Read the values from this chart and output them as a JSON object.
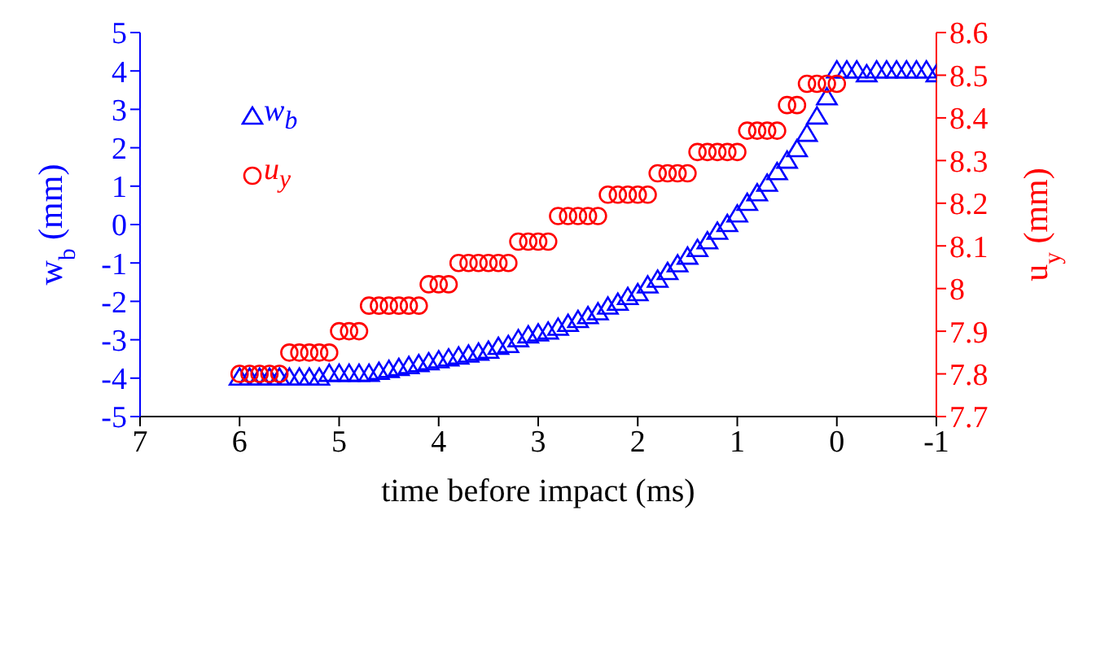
{
  "chart_data": {
    "type": "scatter",
    "xlabel": "time before impact (ms)",
    "ylabel": "w$_{b}$ (mm)",
    "y2label": "u$_{y}$ (mm)",
    "xlim": [
      7,
      -1
    ],
    "xticks": [
      7,
      6,
      5,
      4,
      3,
      2,
      1,
      0,
      -1
    ],
    "ylim": [
      -5,
      5
    ],
    "yticks": [
      -5,
      -4,
      -3,
      -2,
      -1,
      0,
      1,
      2,
      3,
      4,
      5
    ],
    "y2lim": [
      7.7,
      8.6
    ],
    "y2ticks": [
      7.7,
      7.8,
      7.9,
      8,
      8.1,
      8.2,
      8.3,
      8.4,
      8.5,
      8.6
    ],
    "grid": false,
    "legend": "top left",
    "series": [
      {
        "name": "w$_{b}$",
        "color": "#0000ff",
        "marker": "triangle",
        "x": [
          6.0,
          5.9,
          5.8,
          5.7,
          5.6,
          5.5,
          5.4,
          5.3,
          5.2,
          5.1,
          5.0,
          4.9,
          4.8,
          4.7,
          4.6,
          4.5,
          4.4,
          4.3,
          4.2,
          4.1,
          4.0,
          3.9,
          3.8,
          3.7,
          3.6,
          3.5,
          3.4,
          3.3,
          3.2,
          3.1,
          3.0,
          2.9,
          2.8,
          2.7,
          2.6,
          2.5,
          2.4,
          2.3,
          2.2,
          2.1,
          2.0,
          1.9,
          1.8,
          1.7,
          1.6,
          1.5,
          1.4,
          1.3,
          1.2,
          1.1,
          1.0,
          0.9,
          0.8,
          0.7,
          0.6,
          0.5,
          0.4,
          0.3,
          0.2,
          0.1,
          0.0,
          -0.1,
          -0.2,
          -0.3,
          -0.4,
          -0.5,
          -0.6,
          -0.7,
          -0.8,
          -0.9,
          -1.0
        ],
        "values": [
          -4.0,
          -4.0,
          -4.0,
          -4.0,
          -4.0,
          -4.0,
          -4.0,
          -4.0,
          -4.0,
          -3.9,
          -3.9,
          -3.9,
          -3.9,
          -3.9,
          -3.85,
          -3.8,
          -3.75,
          -3.7,
          -3.65,
          -3.6,
          -3.55,
          -3.5,
          -3.45,
          -3.4,
          -3.35,
          -3.3,
          -3.2,
          -3.15,
          -3.0,
          -2.9,
          -2.85,
          -2.8,
          -2.7,
          -2.6,
          -2.5,
          -2.4,
          -2.3,
          -2.15,
          -2.05,
          -1.9,
          -1.8,
          -1.6,
          -1.45,
          -1.25,
          -1.05,
          -0.85,
          -0.65,
          -0.45,
          -0.2,
          0.0,
          0.25,
          0.55,
          0.8,
          1.05,
          1.35,
          1.65,
          1.95,
          2.35,
          2.8,
          3.3,
          4.0,
          4.0,
          4.0,
          3.9,
          4.0,
          4.0,
          4.0,
          4.0,
          4.0,
          4.0,
          3.9
        ]
      },
      {
        "name": "u$_{y}$",
        "color": "#ff0000",
        "marker": "circle",
        "axis": "y2",
        "x": [
          6.0,
          5.9,
          5.8,
          5.7,
          5.6,
          5.5,
          5.4,
          5.3,
          5.2,
          5.1,
          5.0,
          4.9,
          4.8,
          4.7,
          4.6,
          4.5,
          4.4,
          4.3,
          4.2,
          4.1,
          4.0,
          3.9,
          3.8,
          3.7,
          3.6,
          3.5,
          3.4,
          3.3,
          3.2,
          3.1,
          3.0,
          2.9,
          2.8,
          2.7,
          2.6,
          2.5,
          2.4,
          2.3,
          2.2,
          2.1,
          2.0,
          1.9,
          1.8,
          1.7,
          1.6,
          1.5,
          1.4,
          1.3,
          1.2,
          1.1,
          1.0,
          0.9,
          0.8,
          0.7,
          0.6,
          0.5,
          0.4,
          0.3,
          0.2,
          0.1,
          0.0
        ],
        "values": [
          7.8,
          7.8,
          7.8,
          7.8,
          7.8,
          7.85,
          7.85,
          7.85,
          7.85,
          7.85,
          7.9,
          7.9,
          7.9,
          7.96,
          7.96,
          7.96,
          7.96,
          7.96,
          7.96,
          8.01,
          8.01,
          8.01,
          8.06,
          8.06,
          8.06,
          8.06,
          8.06,
          8.06,
          8.11,
          8.11,
          8.11,
          8.11,
          8.17,
          8.17,
          8.17,
          8.17,
          8.17,
          8.22,
          8.22,
          8.22,
          8.22,
          8.22,
          8.27,
          8.27,
          8.27,
          8.27,
          8.32,
          8.32,
          8.32,
          8.32,
          8.32,
          8.37,
          8.37,
          8.37,
          8.37,
          8.43,
          8.43,
          8.48,
          8.48,
          8.48,
          8.48
        ]
      }
    ]
  }
}
